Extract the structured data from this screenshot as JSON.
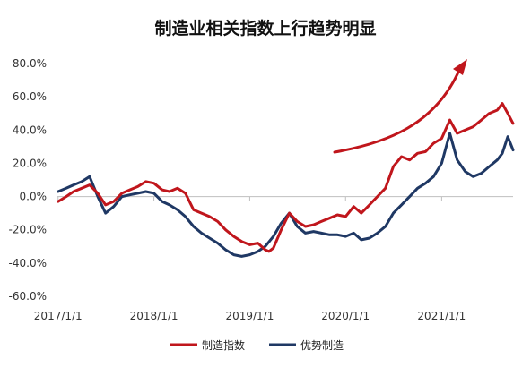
{
  "chart_data": {
    "type": "line",
    "title": "制造业相关指数上行趋势明显",
    "xlabel": "",
    "ylabel": "",
    "ylim": [
      -60,
      80
    ],
    "y_ticks": [
      80,
      60,
      40,
      20,
      0,
      -20,
      -40,
      -60
    ],
    "y_tick_labels": [
      "80.0%",
      "60.0%",
      "40.0%",
      "20.0%",
      "0.0%",
      "-20.0%",
      "-40.0%",
      "-60.0%"
    ],
    "x_ticks": [
      "2017-01-01",
      "2018-01-01",
      "2019-01-01",
      "2020-01-01",
      "2021-01-01"
    ],
    "x_tick_labels": [
      "2017/1/1",
      "2018/1/1",
      "2019/1/1",
      "2020/1/1",
      "2021/1/1"
    ],
    "x_range": [
      "2016-12-26",
      "2021-09-30"
    ],
    "grid": false,
    "legend_position": "bottom",
    "annotations": [
      {
        "type": "trend-arrow",
        "color": "#c0161c"
      }
    ],
    "series": [
      {
        "name": "制造指数",
        "color": "#c0161c",
        "points": [
          [
            "2017-01-01",
            -3
          ],
          [
            "2017-02-01",
            0
          ],
          [
            "2017-03-01",
            3
          ],
          [
            "2017-04-01",
            5
          ],
          [
            "2017-05-01",
            7
          ],
          [
            "2017-06-01",
            2
          ],
          [
            "2017-07-01",
            -5
          ],
          [
            "2017-08-01",
            -3
          ],
          [
            "2017-09-01",
            2
          ],
          [
            "2017-10-01",
            4
          ],
          [
            "2017-11-01",
            6
          ],
          [
            "2017-12-01",
            9
          ],
          [
            "2018-01-01",
            8
          ],
          [
            "2018-02-01",
            4
          ],
          [
            "2018-03-01",
            3
          ],
          [
            "2018-04-01",
            5
          ],
          [
            "2018-05-01",
            2
          ],
          [
            "2018-06-01",
            -8
          ],
          [
            "2018-07-01",
            -10
          ],
          [
            "2018-08-01",
            -12
          ],
          [
            "2018-09-01",
            -15
          ],
          [
            "2018-10-01",
            -20
          ],
          [
            "2018-11-01",
            -24
          ],
          [
            "2018-12-01",
            -27
          ],
          [
            "2019-01-01",
            -29
          ],
          [
            "2019-02-01",
            -28
          ],
          [
            "2019-03-01",
            -32
          ],
          [
            "2019-03-15",
            -33
          ],
          [
            "2019-04-01",
            -31
          ],
          [
            "2019-05-01",
            -20
          ],
          [
            "2019-06-01",
            -10
          ],
          [
            "2019-07-01",
            -15
          ],
          [
            "2019-08-01",
            -18
          ],
          [
            "2019-09-01",
            -17
          ],
          [
            "2019-10-01",
            -15
          ],
          [
            "2019-11-01",
            -13
          ],
          [
            "2019-12-01",
            -11
          ],
          [
            "2020-01-01",
            -12
          ],
          [
            "2020-02-01",
            -6
          ],
          [
            "2020-03-01",
            -10
          ],
          [
            "2020-04-01",
            -5
          ],
          [
            "2020-05-01",
            0
          ],
          [
            "2020-06-01",
            5
          ],
          [
            "2020-07-01",
            18
          ],
          [
            "2020-08-01",
            24
          ],
          [
            "2020-09-01",
            22
          ],
          [
            "2020-10-01",
            26
          ],
          [
            "2020-11-01",
            27
          ],
          [
            "2020-12-01",
            32
          ],
          [
            "2021-01-01",
            35
          ],
          [
            "2021-02-01",
            46
          ],
          [
            "2021-03-01",
            38
          ],
          [
            "2021-04-01",
            40
          ],
          [
            "2021-05-01",
            42
          ],
          [
            "2021-06-01",
            46
          ],
          [
            "2021-07-01",
            50
          ],
          [
            "2021-08-01",
            52
          ],
          [
            "2021-08-20",
            56
          ],
          [
            "2021-09-10",
            50
          ],
          [
            "2021-09-30",
            44
          ]
        ]
      },
      {
        "name": "优势制造",
        "color": "#1f3864",
        "points": [
          [
            "2017-01-01",
            3
          ],
          [
            "2017-02-01",
            5
          ],
          [
            "2017-03-01",
            7
          ],
          [
            "2017-04-01",
            9
          ],
          [
            "2017-05-01",
            12
          ],
          [
            "2017-06-01",
            0
          ],
          [
            "2017-07-01",
            -10
          ],
          [
            "2017-08-01",
            -6
          ],
          [
            "2017-09-01",
            0
          ],
          [
            "2017-10-01",
            1
          ],
          [
            "2017-11-01",
            2
          ],
          [
            "2017-12-01",
            3
          ],
          [
            "2018-01-01",
            2
          ],
          [
            "2018-02-01",
            -3
          ],
          [
            "2018-03-01",
            -5
          ],
          [
            "2018-04-01",
            -8
          ],
          [
            "2018-05-01",
            -12
          ],
          [
            "2018-06-01",
            -18
          ],
          [
            "2018-07-01",
            -22
          ],
          [
            "2018-08-01",
            -25
          ],
          [
            "2018-09-01",
            -28
          ],
          [
            "2018-10-01",
            -32
          ],
          [
            "2018-11-01",
            -35
          ],
          [
            "2018-12-01",
            -36
          ],
          [
            "2019-01-01",
            -35
          ],
          [
            "2019-02-01",
            -33
          ],
          [
            "2019-03-01",
            -30
          ],
          [
            "2019-04-01",
            -24
          ],
          [
            "2019-05-01",
            -16
          ],
          [
            "2019-06-01",
            -10
          ],
          [
            "2019-07-01",
            -18
          ],
          [
            "2019-08-01",
            -22
          ],
          [
            "2019-09-01",
            -21
          ],
          [
            "2019-10-01",
            -22
          ],
          [
            "2019-11-01",
            -23
          ],
          [
            "2019-12-01",
            -23
          ],
          [
            "2020-01-01",
            -24
          ],
          [
            "2020-02-01",
            -22
          ],
          [
            "2020-03-01",
            -26
          ],
          [
            "2020-04-01",
            -25
          ],
          [
            "2020-05-01",
            -22
          ],
          [
            "2020-06-01",
            -18
          ],
          [
            "2020-07-01",
            -10
          ],
          [
            "2020-08-01",
            -5
          ],
          [
            "2020-09-01",
            0
          ],
          [
            "2020-10-01",
            5
          ],
          [
            "2020-11-01",
            8
          ],
          [
            "2020-12-01",
            12
          ],
          [
            "2021-01-01",
            20
          ],
          [
            "2021-02-01",
            38
          ],
          [
            "2021-03-01",
            22
          ],
          [
            "2021-04-01",
            15
          ],
          [
            "2021-05-01",
            12
          ],
          [
            "2021-06-01",
            14
          ],
          [
            "2021-07-01",
            18
          ],
          [
            "2021-08-01",
            22
          ],
          [
            "2021-08-20",
            26
          ],
          [
            "2021-09-10",
            36
          ],
          [
            "2021-09-30",
            28
          ]
        ]
      }
    ]
  }
}
